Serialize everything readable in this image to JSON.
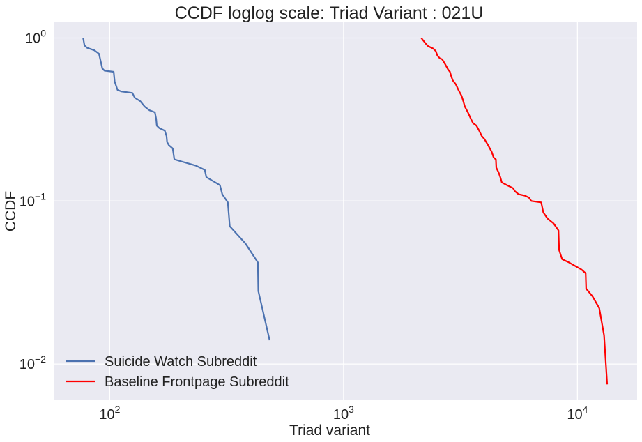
{
  "chart_data": {
    "type": "line",
    "title": "CCDF loglog scale: Triad Variant  : 021U",
    "xlabel": "Triad variant",
    "ylabel": "CCDF",
    "xscale": "log",
    "yscale": "log",
    "xlim": [
      58,
      18000
    ],
    "ylim": [
      0.006,
      1.26
    ],
    "xticks": [
      {
        "value": 100,
        "base": "10",
        "exp": "2"
      },
      {
        "value": 1000,
        "base": "10",
        "exp": "3"
      },
      {
        "value": 10000,
        "base": "10",
        "exp": "4"
      }
    ],
    "yticks": [
      {
        "value": 1,
        "base": "10",
        "exp": "0"
      },
      {
        "value": 0.1,
        "base": "10",
        "exp": "−1"
      },
      {
        "value": 0.01,
        "base": "10",
        "exp": "−2"
      }
    ],
    "grid": true,
    "legend": "bottom-left",
    "colors": {
      "background": "#eaeaf2",
      "grid": "#ffffff"
    },
    "series": [
      {
        "name": "Suicide Watch Subreddit",
        "color": "#4c72b0",
        "points": [
          [
            77,
            1.0
          ],
          [
            78,
            0.9
          ],
          [
            80,
            0.87
          ],
          [
            86,
            0.84
          ],
          [
            90,
            0.8
          ],
          [
            93,
            0.65
          ],
          [
            95,
            0.63
          ],
          [
            104,
            0.62
          ],
          [
            105,
            0.54
          ],
          [
            108,
            0.48
          ],
          [
            112,
            0.47
          ],
          [
            125,
            0.46
          ],
          [
            128,
            0.43
          ],
          [
            135,
            0.41
          ],
          [
            141,
            0.38
          ],
          [
            148,
            0.36
          ],
          [
            156,
            0.35
          ],
          [
            158,
            0.32
          ],
          [
            159,
            0.29
          ],
          [
            163,
            0.28
          ],
          [
            172,
            0.27
          ],
          [
            175,
            0.25
          ],
          [
            176,
            0.23
          ],
          [
            179,
            0.22
          ],
          [
            186,
            0.21
          ],
          [
            189,
            0.18
          ],
          [
            233,
            0.165
          ],
          [
            255,
            0.155
          ],
          [
            259,
            0.14
          ],
          [
            296,
            0.125
          ],
          [
            303,
            0.11
          ],
          [
            320,
            0.098
          ],
          [
            326,
            0.07
          ],
          [
            380,
            0.055
          ],
          [
            430,
            0.042
          ],
          [
            432,
            0.028
          ],
          [
            483,
            0.014
          ]
        ]
      },
      {
        "name": "Baseline Frontpage Subreddit",
        "color": "#ff0000",
        "points": [
          [
            2150,
            1.0
          ],
          [
            2250,
            0.92
          ],
          [
            2300,
            0.89
          ],
          [
            2420,
            0.86
          ],
          [
            2480,
            0.83
          ],
          [
            2520,
            0.78
          ],
          [
            2580,
            0.75
          ],
          [
            2640,
            0.74
          ],
          [
            2720,
            0.69
          ],
          [
            2800,
            0.64
          ],
          [
            2850,
            0.62
          ],
          [
            2890,
            0.58
          ],
          [
            2930,
            0.55
          ],
          [
            3020,
            0.52
          ],
          [
            3100,
            0.48
          ],
          [
            3200,
            0.44
          ],
          [
            3250,
            0.41
          ],
          [
            3300,
            0.38
          ],
          [
            3400,
            0.35
          ],
          [
            3500,
            0.32
          ],
          [
            3580,
            0.3
          ],
          [
            3700,
            0.29
          ],
          [
            3800,
            0.27
          ],
          [
            3900,
            0.25
          ],
          [
            4000,
            0.24
          ],
          [
            4150,
            0.22
          ],
          [
            4300,
            0.2
          ],
          [
            4380,
            0.185
          ],
          [
            4480,
            0.18
          ],
          [
            4500,
            0.16
          ],
          [
            4600,
            0.15
          ],
          [
            4680,
            0.14
          ],
          [
            4750,
            0.13
          ],
          [
            5000,
            0.125
          ],
          [
            5300,
            0.12
          ],
          [
            5400,
            0.115
          ],
          [
            5600,
            0.11
          ],
          [
            5950,
            0.108
          ],
          [
            6200,
            0.105
          ],
          [
            6350,
            0.1
          ],
          [
            7000,
            0.098
          ],
          [
            7150,
            0.085
          ],
          [
            7450,
            0.078
          ],
          [
            7900,
            0.073
          ],
          [
            8300,
            0.066
          ],
          [
            8350,
            0.05
          ],
          [
            8600,
            0.044
          ],
          [
            9200,
            0.042
          ],
          [
            10400,
            0.038
          ],
          [
            10850,
            0.036
          ],
          [
            10900,
            0.029
          ],
          [
            11600,
            0.026
          ],
          [
            12400,
            0.022
          ],
          [
            13000,
            0.015
          ],
          [
            13400,
            0.0075
          ]
        ]
      }
    ]
  }
}
